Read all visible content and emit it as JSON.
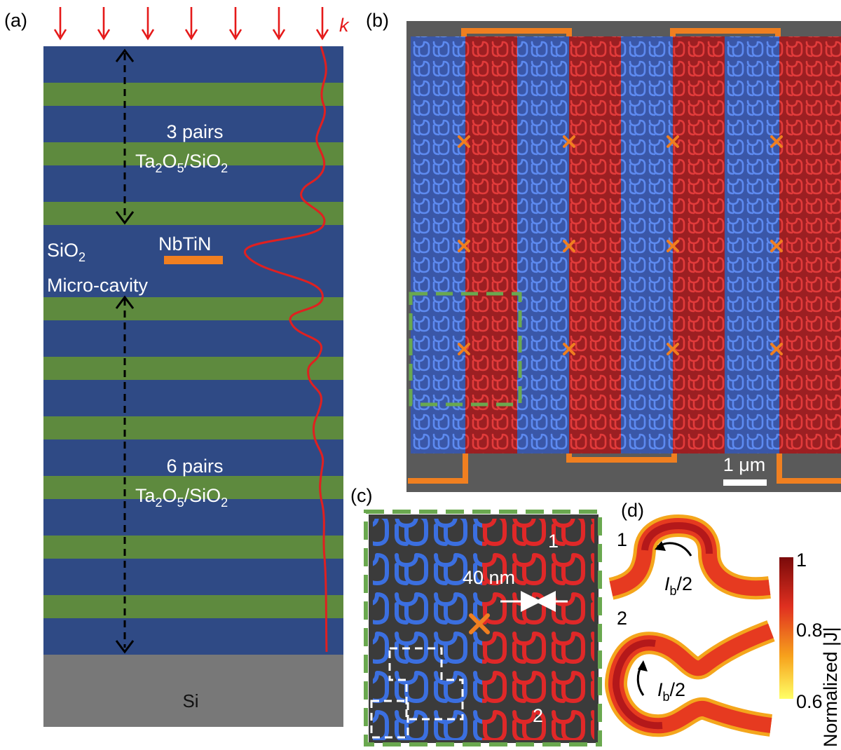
{
  "panels": {
    "a": "(a)",
    "b": "(b)",
    "c": "(c)",
    "d": "(d)"
  },
  "panel_a": {
    "wave_vector": "k",
    "top_mirror": {
      "pairs": "3 pairs",
      "material_main": "Ta",
      "sub1": "2",
      "mid1": "O",
      "sub2": "5",
      "mid2": "/SiO",
      "sub3": "2"
    },
    "bottom_mirror": {
      "pairs": "6 pairs",
      "material_main": "Ta",
      "sub1": "2",
      "mid1": "O",
      "sub2": "5",
      "mid2": "/SiO",
      "sub3": "2"
    },
    "cavity_label_main": "SiO",
    "cavity_label_sub": "2",
    "cavity_label_2": "Micro-cavity",
    "nanowire_label": "NbTiN",
    "substrate": "Si"
  },
  "panel_b": {
    "scale_bar": "1 μm"
  },
  "panel_c": {
    "width_label": "40 nm",
    "region_1": "1",
    "region_2": "2"
  },
  "panel_d": {
    "curve_1": "1",
    "curve_2": "2",
    "current_main": "I",
    "current_sub": "b",
    "current_tail": "/2",
    "colorbar_ticks": [
      "1",
      "0.8",
      "0.6"
    ],
    "colorbar_label": "Normalized |J|"
  },
  "colors": {
    "blue_layer": "#2f4a85",
    "green_layer": "#5e8a3e",
    "substrate": "#787878",
    "field_curve": "#e02020",
    "nanowire_orange": "#f07f20",
    "sem_bg": "#5a5a5a",
    "wire_blue": "#3e6fd9",
    "wire_red": "#d42a2a",
    "dash_green": "#6aa84f"
  }
}
